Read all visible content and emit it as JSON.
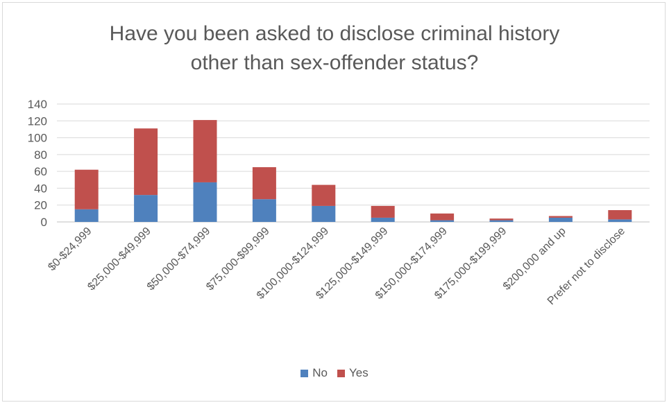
{
  "chart_data": {
    "type": "bar",
    "stacked": true,
    "title_lines": [
      "Have you been asked to disclose criminal history",
      "other than sex-offender status?"
    ],
    "categories": [
      "$0-$24,999",
      "$25,000-$49,999",
      "$50,000-$74,999",
      "$75,000-$99,999",
      "$100,000-$124,999",
      "$125,000-$149,999",
      "$150,000-$174,999",
      "$175,000-$199,999",
      "$200,000 and up",
      "Prefer not to disclose"
    ],
    "series": [
      {
        "name": "No",
        "color": "#4f81bd",
        "values": [
          15,
          32,
          47,
          27,
          19,
          5,
          2,
          2,
          5,
          3
        ]
      },
      {
        "name": "Yes",
        "color": "#c0504d",
        "values": [
          47,
          79,
          74,
          38,
          25,
          14,
          8,
          2,
          2,
          11
        ]
      }
    ],
    "ylim": [
      0,
      140
    ],
    "yticks": [
      0,
      20,
      40,
      60,
      80,
      100,
      120,
      140
    ],
    "grid": true,
    "legend_position": "bottom"
  }
}
